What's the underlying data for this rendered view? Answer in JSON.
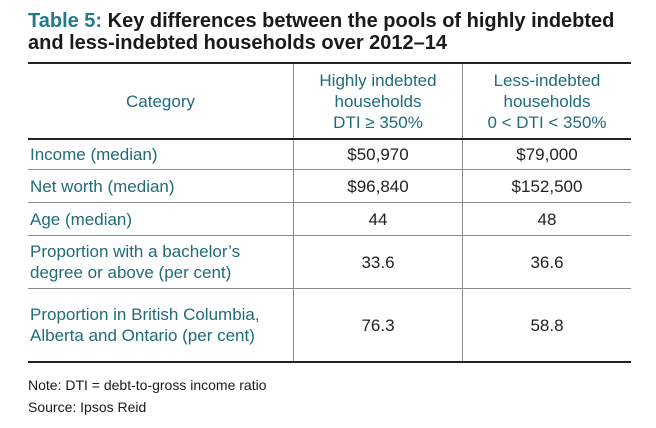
{
  "title": {
    "label": "Table 5:",
    "text": "Key differences between the pools of highly indebted and less-indebted households over 2012–14"
  },
  "table": {
    "headers": {
      "category": "Category",
      "highly": [
        "Highly indebted",
        "households",
        "DTI ≥ 350%"
      ],
      "less": [
        "Less-indebted",
        "households",
        "0 < DTI < 350%"
      ]
    },
    "rows": [
      {
        "category": "Income (median)",
        "highly": "$50,970",
        "less": "$79,000"
      },
      {
        "category": "Net worth (median)",
        "highly": "$96,840",
        "less": "$152,500"
      },
      {
        "category": "Age (median)",
        "highly": "44",
        "less": "48"
      },
      {
        "category": "Proportion with a bachelor’s degree or above (per cent)",
        "highly": "33.6",
        "less": "36.6"
      },
      {
        "category": "Proportion in British Columbia, Alberta and Ontario (per cent)",
        "highly": "76.3",
        "less": "58.8"
      }
    ]
  },
  "notes": {
    "note": "Note: DTI = debt-to-gross income ratio",
    "source": "Source: Ipsos Reid"
  }
}
